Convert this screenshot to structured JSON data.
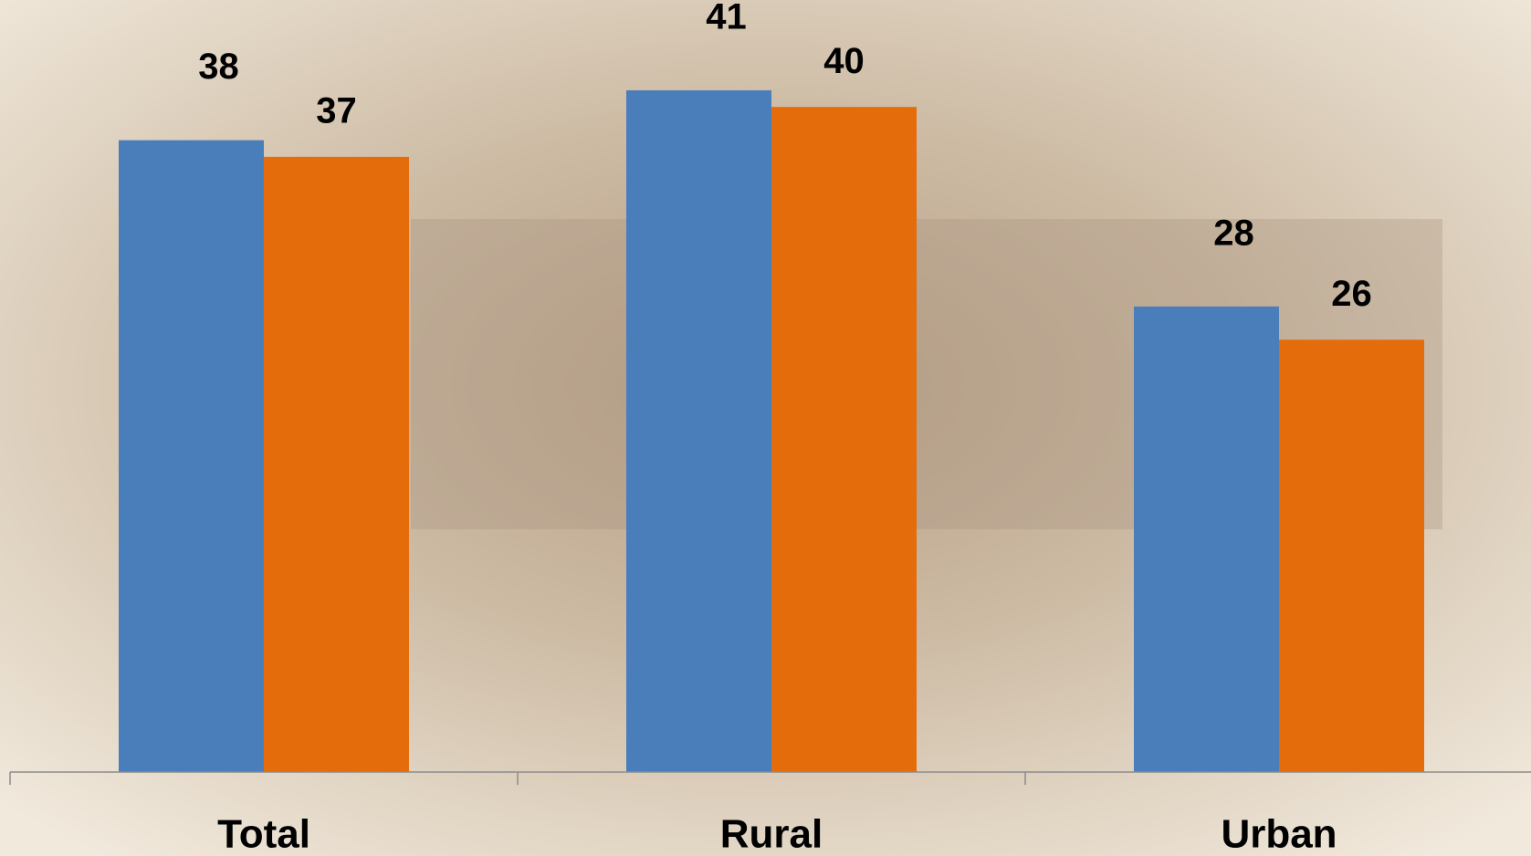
{
  "chart_data": {
    "type": "bar",
    "categories": [
      "Total",
      "Rural",
      "Urban"
    ],
    "series": [
      {
        "color": "#4a7ebb",
        "values": [
          38,
          41,
          28
        ]
      },
      {
        "color": "#e46c0a",
        "values": [
          37,
          40,
          26
        ]
      }
    ]
  }
}
